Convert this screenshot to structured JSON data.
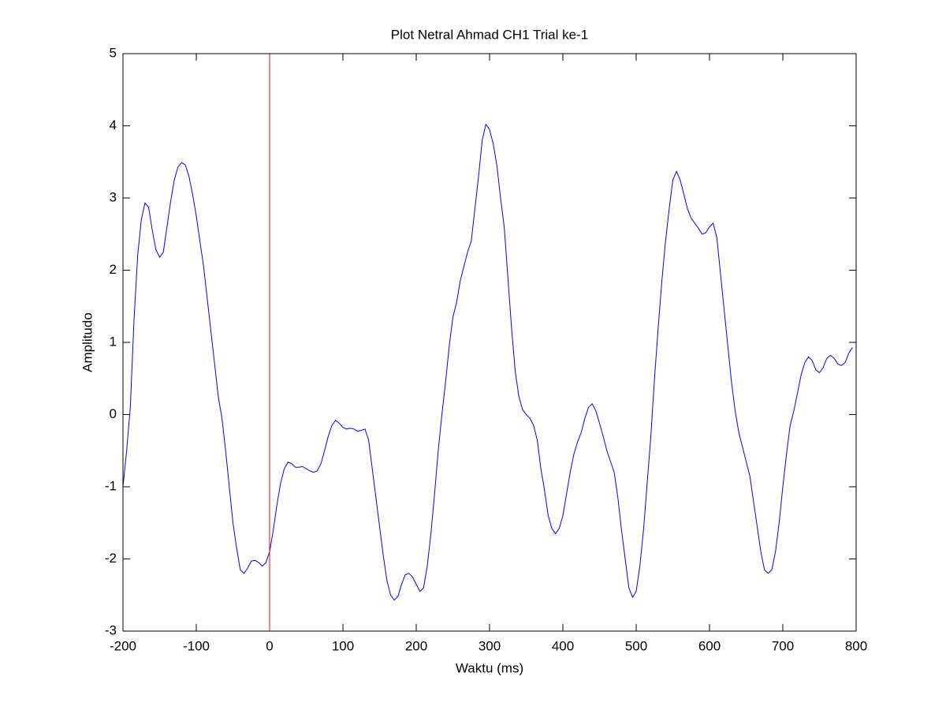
{
  "chart_data": {
    "type": "line",
    "title": "Plot Netral Ahmad CH1 Trial ke-1",
    "xlabel": "Waktu (ms)",
    "ylabel": "Amplitudo",
    "xlim": [
      -200,
      800
    ],
    "ylim": [
      -3,
      5
    ],
    "xticks": [
      -200,
      -100,
      0,
      100,
      200,
      300,
      400,
      500,
      600,
      700,
      800
    ],
    "yticks": [
      -3,
      -2,
      -1,
      0,
      1,
      2,
      3,
      4,
      5
    ],
    "grid": false,
    "vline": {
      "x": 0,
      "color": "#ff0000"
    },
    "x": [
      -200,
      -195,
      -190,
      -185,
      -180,
      -175,
      -170,
      -165,
      -160,
      -155,
      -150,
      -145,
      -140,
      -135,
      -130,
      -125,
      -120,
      -115,
      -110,
      -105,
      -100,
      -95,
      -90,
      -85,
      -80,
      -75,
      -70,
      -65,
      -60,
      -55,
      -50,
      -45,
      -40,
      -35,
      -30,
      -25,
      -20,
      -15,
      -10,
      -5,
      0,
      5,
      10,
      15,
      20,
      25,
      30,
      35,
      40,
      45,
      50,
      55,
      60,
      65,
      70,
      75,
      80,
      85,
      90,
      95,
      100,
      105,
      110,
      115,
      120,
      125,
      130,
      135,
      140,
      145,
      150,
      155,
      160,
      165,
      170,
      175,
      180,
      185,
      190,
      195,
      200,
      205,
      210,
      215,
      220,
      225,
      230,
      235,
      240,
      245,
      250,
      255,
      260,
      265,
      270,
      275,
      280,
      285,
      290,
      295,
      300,
      305,
      310,
      315,
      320,
      325,
      330,
      335,
      340,
      345,
      350,
      355,
      360,
      365,
      370,
      375,
      380,
      385,
      390,
      395,
      400,
      405,
      410,
      415,
      420,
      425,
      430,
      435,
      440,
      445,
      450,
      455,
      460,
      465,
      470,
      475,
      480,
      485,
      490,
      495,
      500,
      505,
      510,
      515,
      520,
      525,
      530,
      535,
      540,
      545,
      550,
      555,
      560,
      565,
      570,
      575,
      580,
      585,
      590,
      595,
      600,
      605,
      610,
      615,
      620,
      625,
      630,
      635,
      640,
      645,
      650,
      655,
      660,
      665,
      670,
      675,
      680,
      685,
      690,
      695,
      700,
      705,
      710,
      715,
      720,
      725,
      730,
      735,
      740,
      745,
      750,
      755,
      760,
      765,
      770,
      775,
      780,
      785,
      790,
      795
    ],
    "series": [
      {
        "color": "#0000ff",
        "values": [
          -1.0,
          -0.5,
          0.1,
          1.3,
          2.2,
          2.7,
          2.93,
          2.87,
          2.55,
          2.28,
          2.18,
          2.25,
          2.6,
          2.95,
          3.25,
          3.43,
          3.49,
          3.46,
          3.3,
          3.05,
          2.75,
          2.4,
          2.05,
          1.6,
          1.15,
          0.7,
          0.25,
          -0.05,
          -0.5,
          -1.0,
          -1.5,
          -1.85,
          -2.15,
          -2.2,
          -2.13,
          -2.03,
          -2.02,
          -2.05,
          -2.1,
          -2.05,
          -1.9,
          -1.6,
          -1.25,
          -0.95,
          -0.75,
          -0.66,
          -0.68,
          -0.73,
          -0.73,
          -0.72,
          -0.75,
          -0.78,
          -0.8,
          -0.78,
          -0.68,
          -0.5,
          -0.3,
          -0.15,
          -0.08,
          -0.12,
          -0.18,
          -0.2,
          -0.19,
          -0.2,
          -0.23,
          -0.22,
          -0.2,
          -0.35,
          -0.75,
          -1.15,
          -1.55,
          -1.95,
          -2.3,
          -2.5,
          -2.57,
          -2.52,
          -2.35,
          -2.22,
          -2.2,
          -2.25,
          -2.35,
          -2.45,
          -2.4,
          -2.1,
          -1.65,
          -1.1,
          -0.5,
          0.0,
          0.45,
          0.95,
          1.35,
          1.55,
          1.85,
          2.05,
          2.25,
          2.4,
          2.85,
          3.3,
          3.8,
          4.02,
          3.95,
          3.75,
          3.45,
          3.0,
          2.6,
          1.9,
          1.2,
          0.6,
          0.25,
          0.07,
          0.0,
          -0.05,
          -0.15,
          -0.35,
          -0.75,
          -1.05,
          -1.4,
          -1.58,
          -1.65,
          -1.58,
          -1.4,
          -1.1,
          -0.8,
          -0.55,
          -0.38,
          -0.25,
          -0.05,
          0.1,
          0.15,
          0.05,
          -0.12,
          -0.3,
          -0.5,
          -0.65,
          -0.8,
          -1.15,
          -1.6,
          -2.0,
          -2.4,
          -2.53,
          -2.45,
          -2.1,
          -1.6,
          -0.95,
          -0.3,
          0.5,
          1.2,
          1.85,
          2.4,
          2.85,
          3.25,
          3.37,
          3.25,
          3.05,
          2.85,
          2.72,
          2.65,
          2.58,
          2.5,
          2.52,
          2.6,
          2.65,
          2.45,
          1.95,
          1.45,
          0.95,
          0.45,
          0.05,
          -0.25,
          -0.45,
          -0.65,
          -0.85,
          -1.2,
          -1.55,
          -1.9,
          -2.15,
          -2.2,
          -2.15,
          -1.9,
          -1.5,
          -1.0,
          -0.55,
          -0.15,
          0.05,
          0.3,
          0.55,
          0.72,
          0.8,
          0.75,
          0.62,
          0.58,
          0.65,
          0.78,
          0.82,
          0.78,
          0.7,
          0.68,
          0.72,
          0.85,
          0.93
        ]
      }
    ]
  }
}
